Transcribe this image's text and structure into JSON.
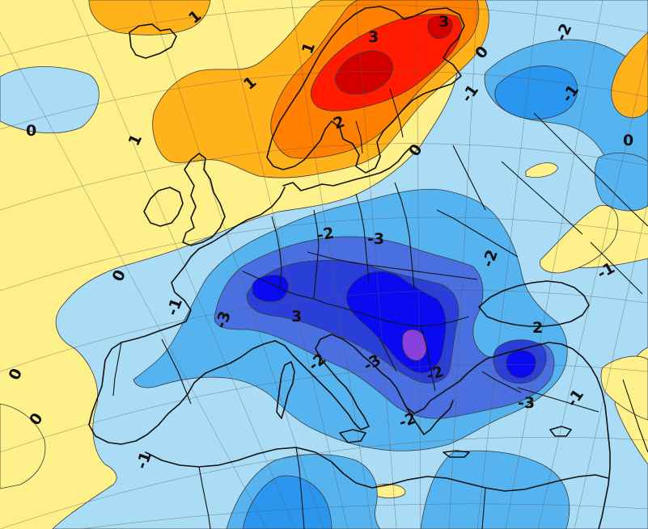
{
  "map": {
    "type": "anomaly-contour-map",
    "colors": {
      "plus3": "#d40000",
      "plus2_5": "#ff1a00",
      "plus2": "#ff7f00",
      "plus1": "#ffb21a",
      "plus0_5": "#fef08a",
      "minus0_5": "#aadcf5",
      "minus1": "#55b4f0",
      "minus1_5": "#2a96f0",
      "minus2": "#4a6fe0",
      "minus2_5": "#2a3fd8",
      "minus3": "#0a0af0",
      "minus3_5": "#8a3fe0",
      "coast": "#111111",
      "grid": "#5a5a5a"
    },
    "labels": [
      {
        "text": "1"
      },
      {
        "text": "1"
      },
      {
        "text": "3"
      },
      {
        "text": "3"
      },
      {
        "text": "-2"
      },
      {
        "text": "0"
      },
      {
        "text": "0"
      },
      {
        "text": "1"
      },
      {
        "text": "-1"
      },
      {
        "text": "-1"
      },
      {
        "text": "0"
      },
      {
        "text": "2"
      },
      {
        "text": "0"
      },
      {
        "text": "1"
      },
      {
        "text": "-2"
      },
      {
        "text": "-3"
      },
      {
        "text": "0"
      },
      {
        "text": "-2"
      },
      {
        "text": "-1"
      },
      {
        "text": "-3"
      },
      {
        "text": "3"
      },
      {
        "text": "2"
      },
      {
        "text": "0"
      },
      {
        "text": "0"
      },
      {
        "text": "-2"
      },
      {
        "text": "-3"
      },
      {
        "text": "-2"
      },
      {
        "text": "-3"
      },
      {
        "text": "-2"
      },
      {
        "text": "-1"
      },
      {
        "text": "-1"
      },
      {
        "text": "-1"
      }
    ]
  }
}
